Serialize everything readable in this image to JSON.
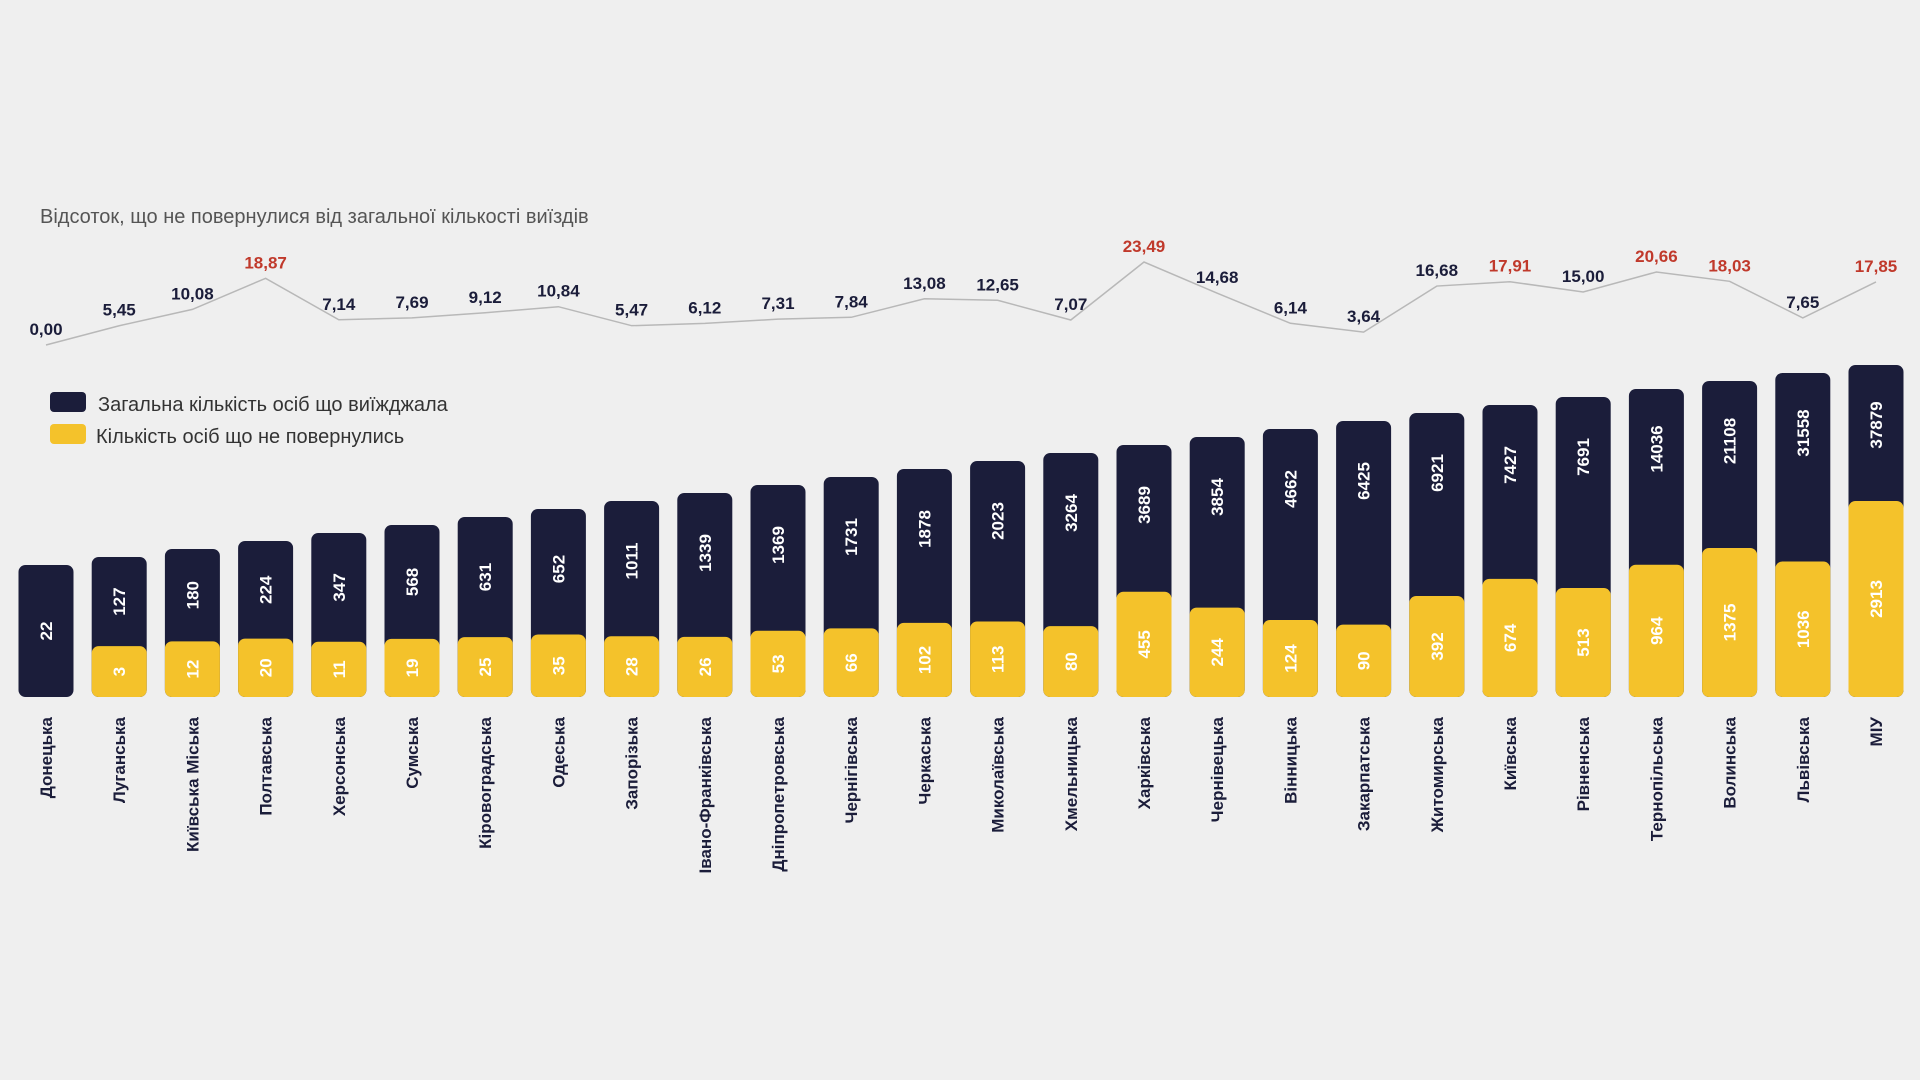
{
  "chart_data": {
    "type": "bar",
    "title": "Відсоток, що не повернулися від загальної кількості виїздів",
    "categories": [
      "Донецька",
      "Луганська",
      "Київська Міська",
      "Полтавська",
      "Херсонська",
      "Сумська",
      "Кіровоградська",
      "Одеська",
      "Запорізька",
      "Івано-Франківська",
      "Дніпропетровська",
      "Чернігівська",
      "Черкаська",
      "Миколаївська",
      "Хмельницька",
      "Харківська",
      "Чернівецька",
      "Вінницька",
      "Закарпатська",
      "Житомирська",
      "Київська",
      "Рівненська",
      "Тернопільська",
      "Волинська",
      "Львівська",
      "МІУ"
    ],
    "series": [
      {
        "name": "Загальна кількість осіб що виїжджала",
        "values": [
          22,
          127,
          180,
          224,
          347,
          568,
          631,
          652,
          1011,
          1339,
          1369,
          1731,
          1878,
          2023,
          3264,
          3689,
          3854,
          4662,
          6425,
          6921,
          7427,
          7691,
          14036,
          21108,
          31558,
          37879
        ]
      },
      {
        "name": "Кількість осіб що не повернулись",
        "values": [
          0,
          3,
          12,
          20,
          11,
          19,
          25,
          35,
          28,
          26,
          53,
          66,
          102,
          113,
          80,
          455,
          244,
          124,
          90,
          392,
          674,
          513,
          964,
          1375,
          1036,
          2913
        ]
      }
    ],
    "percent_labels": [
      "0,00",
      "5,45",
      "10,08",
      "18,87",
      "7,14",
      "7,69",
      "9,12",
      "10,84",
      "5,47",
      "6,12",
      "7,31",
      "7,84",
      "13,08",
      "12,65",
      "7,07",
      "23,49",
      "14,68",
      "6,14",
      "3,64",
      "16,68",
      "17,91",
      "15,00",
      "20,66",
      "18,03",
      "7,65",
      "17,85"
    ],
    "percent_values": [
      0.0,
      5.45,
      10.08,
      18.87,
      7.14,
      7.69,
      9.12,
      10.84,
      5.47,
      6.12,
      7.31,
      7.84,
      13.08,
      12.65,
      7.07,
      23.49,
      14.68,
      6.14,
      3.64,
      16.68,
      17.91,
      15.0,
      20.66,
      18.03,
      7.65,
      17.85
    ],
    "highlight_threshold": 17.5,
    "legend_placement": "top-left",
    "grid": false
  },
  "colors": {
    "navy": "#1b1d3a",
    "yellow": "#f4c22b",
    "line": "#b8b8b8",
    "highlight": "#c0392b",
    "background": "#efefef"
  }
}
